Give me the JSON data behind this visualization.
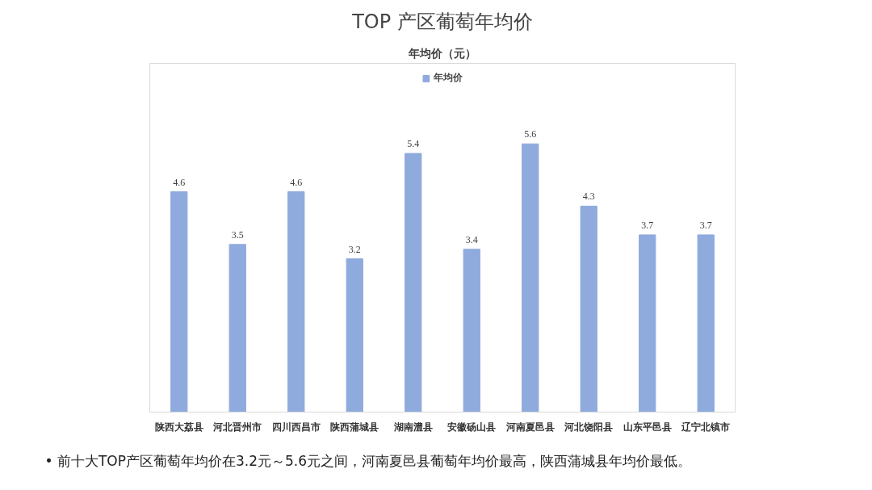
{
  "chart_data": {
    "type": "bar",
    "title": "TOP 产区葡萄年均价",
    "subtitle": "年均价（元）",
    "categories": [
      "陕西大荔县",
      "河北晋州市",
      "四川西昌市",
      "陕西蒲城县",
      "湖南澧县",
      "安徽砀山县",
      "河南夏邑县",
      "河北饶阳县",
      "山东平邑县",
      "辽宁北镇市"
    ],
    "series": [
      {
        "name": "年均价",
        "color": "#8faadc",
        "values": [
          4.6,
          3.5,
          4.6,
          3.2,
          5.4,
          3.4,
          5.6,
          4.3,
          3.7,
          3.7
        ]
      }
    ],
    "data_labels": true,
    "legend": "top",
    "grid": false,
    "annotations": [
      "• 前十大TOP产区葡萄年均价在3.2元～5.6元之间，河南夏邑县葡萄年均价最高，陕西蒲城县年均价最低。"
    ]
  }
}
